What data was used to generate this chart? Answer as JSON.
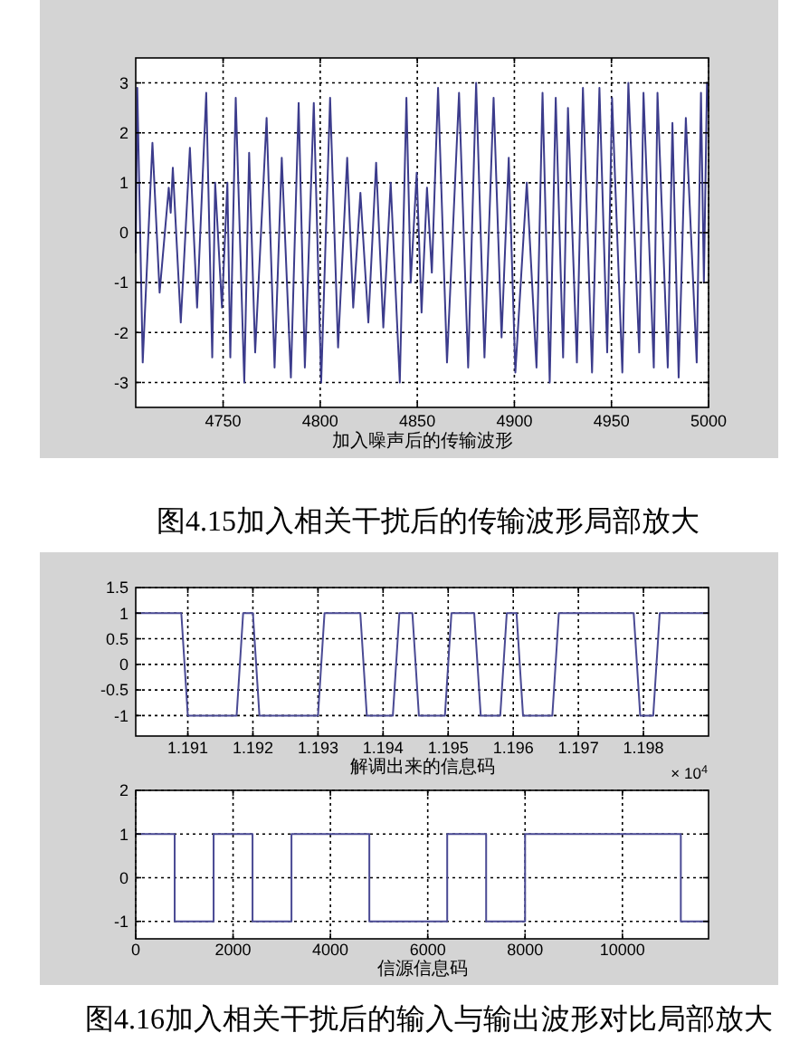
{
  "chart_data": [
    {
      "type": "line",
      "xlabel": "加入噪声后的传输波形",
      "xlim": [
        4705,
        5000
      ],
      "xticks": [
        4750,
        4800,
        4850,
        4900,
        4950,
        5000
      ],
      "ylim": [
        -3.5,
        3.5
      ],
      "yticks": [
        -3,
        -2,
        -1,
        0,
        1,
        2,
        3
      ],
      "grid": true,
      "color": "#3c3c8c",
      "x": [
        4705,
        4705.8,
        4708.6,
        4713.6,
        4717.3,
        4722,
        4723,
        4724.1,
        4728.2,
        4732.9,
        4736.6,
        4741.3,
        4744.4,
        4745.9,
        4749.4,
        4752.2,
        4753.7,
        4756.5,
        4760.9,
        4763.4,
        4766.5,
        4772.4,
        4776.5,
        4780.2,
        4784.9,
        4788.9,
        4792.1,
        4796.7,
        4800.5,
        4805.1,
        4809.2,
        4813.9,
        4817,
        4820.7,
        4824.8,
        4828.8,
        4832.5,
        4836.3,
        4841,
        4844.4,
        4846.6,
        4849.7,
        4852.2,
        4855,
        4857.5,
        4860.7,
        4865.3,
        4871.5,
        4876.2,
        4880.3,
        4884.6,
        4889.3,
        4893.4,
        4897.1,
        4900.5,
        4906.4,
        4911.4,
        4914.5,
        4918.2,
        4921.3,
        4925.1,
        4927.6,
        4932.2,
        4935.3,
        4940,
        4943.8,
        4947.8,
        4950.3,
        4955.6,
        4958.7,
        4964.3,
        4966.5,
        4971.8,
        4973.7,
        4979,
        4981.4,
        4984.6,
        4988.3,
        4993.9,
        4996.1,
        4997.6,
        4999.2,
        5000
      ],
      "values": [
        -0.4,
        2.9,
        -2.6,
        1.8,
        -1.2,
        0.9,
        0.4,
        1.3,
        -1.8,
        1.7,
        -1.5,
        2.8,
        -2.5,
        1,
        -1.5,
        1,
        -2.5,
        2.7,
        -3,
        1.6,
        -2.4,
        2.3,
        -2.7,
        1.5,
        -2.9,
        2.6,
        -2.7,
        2.6,
        -3,
        2.7,
        -2.3,
        1.5,
        -1.5,
        0.8,
        -1.8,
        1.4,
        -1.9,
        1,
        -3,
        2.7,
        -1,
        1.2,
        -1.6,
        0.9,
        -0.8,
        2.9,
        -2.6,
        2.8,
        -2.7,
        3,
        -2.5,
        2.7,
        -2.1,
        1.5,
        -2.8,
        1,
        -2.7,
        2.8,
        -3,
        2.7,
        -2.5,
        2.5,
        -2.6,
        2.9,
        -2.8,
        2.9,
        -2.4,
        2.7,
        -2.8,
        3,
        -2.4,
        2.8,
        -2.7,
        2.8,
        -2.7,
        2.2,
        -2.9,
        2.3,
        -2.6,
        2.8,
        -1,
        3,
        2.5
      ],
      "annotations": [
        "图4.15加入相关干扰后的传输波形局部放大"
      ]
    },
    {
      "type": "line",
      "xlabel": "解调出来的信息码",
      "xlim": [
        1.1902,
        1.199
      ],
      "xticks": [
        1.191,
        1.192,
        1.193,
        1.194,
        1.195,
        1.196,
        1.197,
        1.198
      ],
      "ylim": [
        -1.4,
        1.5
      ],
      "yticks": [
        -1,
        -0.5,
        0,
        0.5,
        1,
        1.5
      ],
      "grid": true,
      "color": "#4a4a94",
      "x": [
        1.1902,
        1.1909,
        1.191,
        1.19175,
        1.19185,
        1.192,
        1.1921,
        1.193,
        1.1931,
        1.19365,
        1.19375,
        1.19415,
        1.19425,
        1.19445,
        1.19455,
        1.19495,
        1.19505,
        1.1954,
        1.1955,
        1.1958,
        1.1959,
        1.19605,
        1.19615,
        1.1966,
        1.1967,
        1.19785,
        1.19795,
        1.19815,
        1.19825,
        1.199
      ],
      "values": [
        1,
        1,
        -1,
        -1,
        1,
        1,
        -1,
        -1,
        1,
        1,
        -1,
        -1,
        1,
        1,
        -1,
        -1,
        1,
        1,
        -1,
        -1,
        1,
        1,
        -1,
        -1,
        1,
        1,
        -1,
        -1,
        1,
        1
      ],
      "annotations": [
        "× 10$^{4}$"
      ]
    },
    {
      "type": "step",
      "xlabel": "信源信息码",
      "xlim": [
        0,
        11770
      ],
      "xticks": [
        0,
        2000,
        4000,
        6000,
        8000,
        10000
      ],
      "ylim": [
        -1.4,
        2
      ],
      "yticks": [
        -1,
        0,
        1,
        2
      ],
      "grid": true,
      "color": "#4a4a94",
      "x": [
        0,
        800,
        1600,
        2400,
        3200,
        4800,
        6400,
        7200,
        8000,
        11200,
        11770
      ],
      "values": [
        1,
        -1,
        1,
        -1,
        1,
        -1,
        1,
        -1,
        1,
        -1,
        -1
      ],
      "annotations": [
        "图4.16加入相关干扰后的输入与输出波形对比局部放大"
      ]
    }
  ]
}
